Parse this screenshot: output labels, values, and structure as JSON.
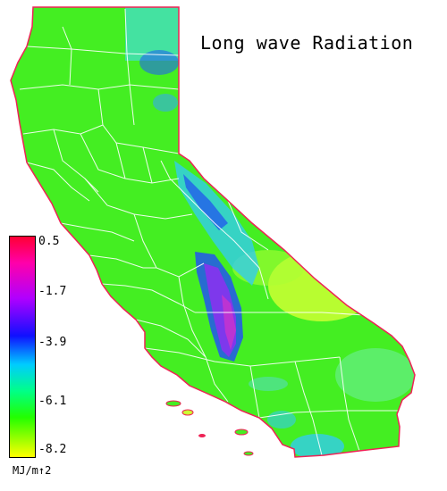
{
  "title": "Long wave Radiation",
  "legend": {
    "ticks": [
      "0.5",
      "-1.7",
      "-3.9",
      "-6.1",
      "-8.2"
    ],
    "unit": "MJ/m↑2",
    "colors": [
      "#ff0033",
      "#ff00aa",
      "#b000ff",
      "#1010ff",
      "#00ccff",
      "#00ff88",
      "#22ff00",
      "#ffff00"
    ]
  },
  "map_colors": {
    "base": "#44ee22",
    "yellow": "#ccff33",
    "cyan": "#33ccee",
    "blue": "#2255ee",
    "purple": "#8833ee",
    "magenta": "#cc33cc",
    "coast": "#ee2255",
    "boundaries": "#ffffff"
  }
}
